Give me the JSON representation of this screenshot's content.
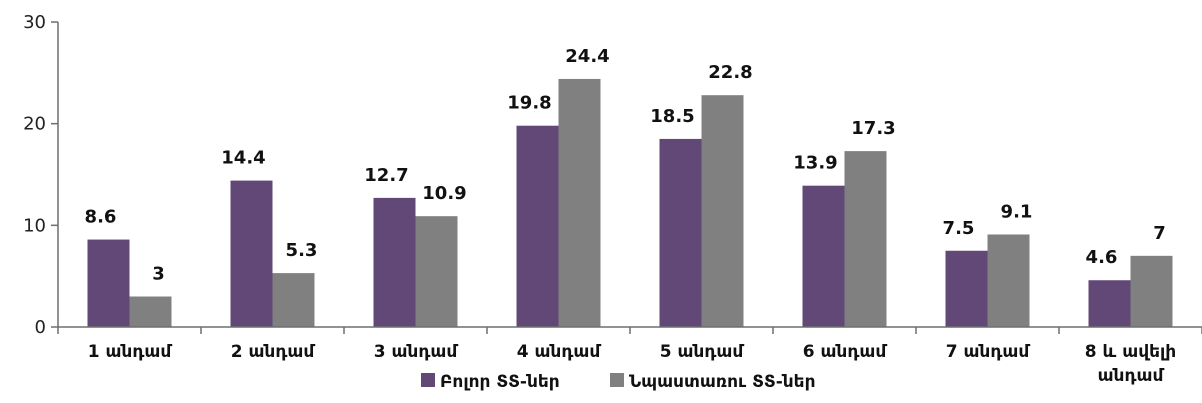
{
  "chart_data": {
    "type": "bar",
    "categories": [
      "1 անդամ",
      "2 անդամ",
      "3 անդամ",
      "4 անդամ",
      "5 անդամ",
      "6 անդամ",
      "7 անդամ",
      [
        "8 և ավելի",
        "անդամ"
      ]
    ],
    "series": [
      {
        "name": "Բոլոր ՏՏ-ներ",
        "values": [
          8.6,
          14.4,
          12.7,
          19.8,
          18.5,
          13.9,
          7.5,
          4.6
        ],
        "labels": [
          "8.6",
          "14.4",
          "12.7",
          "19.8",
          "18.5",
          "13.9",
          "7.5",
          "4.6"
        ],
        "color": "#614877"
      },
      {
        "name": "Նպաստառու ՏՏ-ներ",
        "values": [
          3,
          5.3,
          10.9,
          24.4,
          22.8,
          17.3,
          9.1,
          7
        ],
        "labels": [
          "3",
          "5.3",
          "10.9",
          "24.4",
          "22.8",
          "17.3",
          "9.1",
          "7"
        ],
        "color": "#808080"
      }
    ],
    "y_ticks": [
      "0",
      "10",
      "20",
      "30"
    ],
    "ylim": [
      0,
      30
    ],
    "grid": false,
    "legend_position": "bottom",
    "title": "",
    "xlabel": "",
    "ylabel": ""
  }
}
